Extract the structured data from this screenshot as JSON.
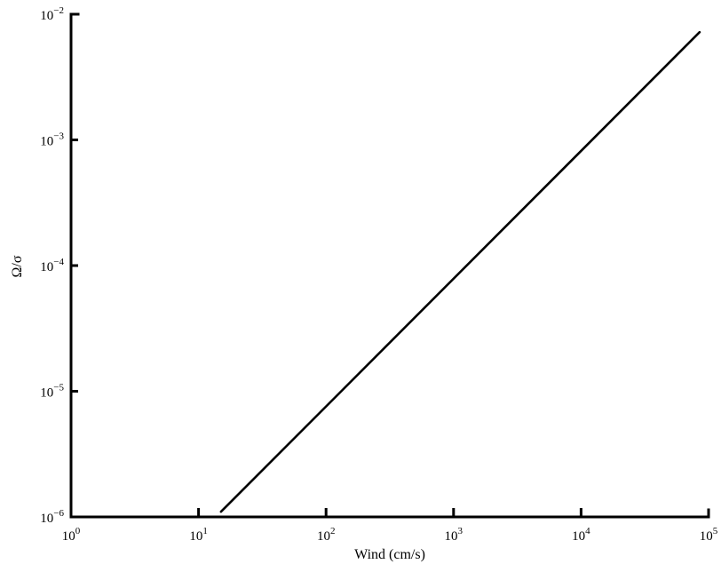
{
  "chart_data": {
    "type": "line",
    "title": "",
    "xlabel": "Wind (cm/s)",
    "ylabel": "Ω/σ",
    "x_scale": "log",
    "y_scale": "log",
    "xlim": [
      1,
      100000
    ],
    "ylim": [
      1e-06,
      0.01
    ],
    "grid": false,
    "x_ticks": [
      {
        "value": 1,
        "base": "10",
        "exp": "0"
      },
      {
        "value": 10,
        "base": "10",
        "exp": "1"
      },
      {
        "value": 100,
        "base": "10",
        "exp": "2"
      },
      {
        "value": 1000,
        "base": "10",
        "exp": "3"
      },
      {
        "value": 10000,
        "base": "10",
        "exp": "4"
      },
      {
        "value": 100000,
        "base": "10",
        "exp": "5"
      }
    ],
    "y_ticks": [
      {
        "value": 1e-06,
        "base": "10",
        "exp": "−6"
      },
      {
        "value": 1e-05,
        "base": "10",
        "exp": "−5"
      },
      {
        "value": 0.0001,
        "base": "10",
        "exp": "−4"
      },
      {
        "value": 0.001,
        "base": "10",
        "exp": "−3"
      },
      {
        "value": 0.01,
        "base": "10",
        "exp": "−2"
      }
    ],
    "series": [
      {
        "points": [
          {
            "x": 15,
            "y": 1.1e-06
          },
          {
            "x": 85000,
            "y": 0.0072
          }
        ]
      }
    ]
  }
}
